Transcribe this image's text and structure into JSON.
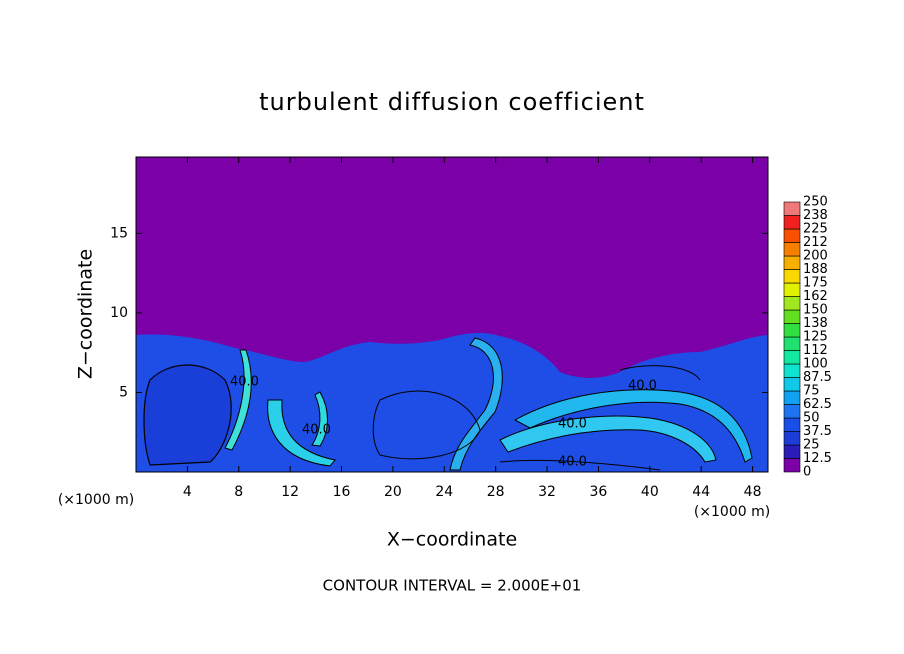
{
  "chart_data": {
    "type": "contour",
    "title": "turbulent diffusion coefficient",
    "xlabel": "X−coordinate",
    "ylabel": "Z−coordinate",
    "xunit": "(×1000 m)",
    "yunit": "(×1000 m)",
    "footnote": "CONTOUR INTERVAL = 2.000E+01",
    "contour_labels": [
      "40.0",
      "40.0",
      "40.0",
      "40.0",
      "40.0"
    ],
    "xlim": [
      0,
      49.2
    ],
    "xticks": [
      4,
      8,
      12,
      16,
      20,
      24,
      28,
      32,
      36,
      40,
      44,
      48
    ],
    "ylim": [
      0,
      19.8
    ],
    "yticks": [
      5,
      10,
      15
    ],
    "colorbar": {
      "ticks": [
        0,
        12.5,
        25,
        37.5,
        50,
        62.5,
        75,
        87.5,
        100,
        112,
        125,
        138,
        150,
        162,
        175,
        188,
        200,
        212,
        225,
        238,
        250
      ],
      "colors": [
        "#7b00a8",
        "#2a1cb8",
        "#1e3cd8",
        "#1a4ee8",
        "#1e74f0",
        "#12a0f0",
        "#10c8e8",
        "#10e2d0",
        "#12e8a0",
        "#20e070",
        "#30e040",
        "#62e020",
        "#a2e820",
        "#e0f000",
        "#f8d800",
        "#f8b000",
        "#f88000",
        "#f85000",
        "#f02020",
        "#f07878"
      ]
    }
  }
}
